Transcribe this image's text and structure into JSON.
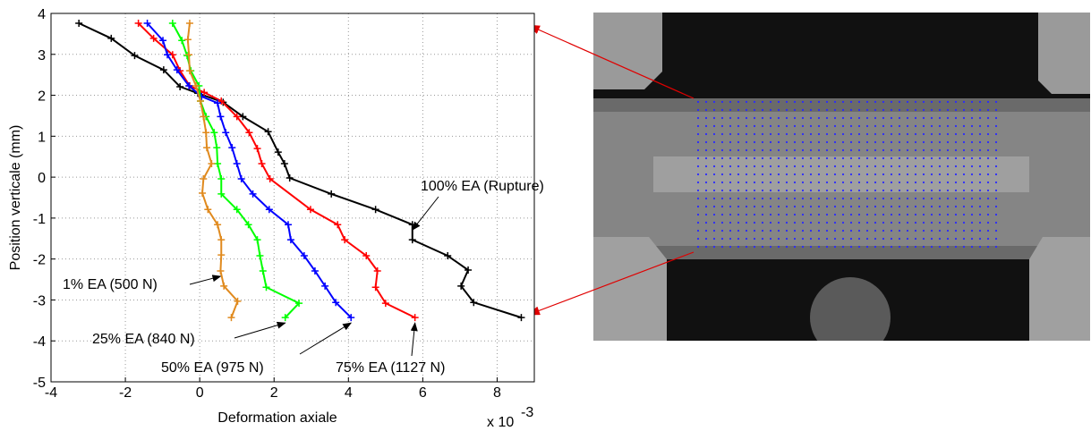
{
  "chart_data": {
    "type": "line",
    "x_label": "Deformation axiale",
    "y_label": "Position verticale (mm)",
    "x_multiplier": "x 10",
    "x_multiplier_exponent": "-3",
    "xlim": [
      -4,
      9
    ],
    "xticks": [
      -4,
      -2,
      0,
      2,
      4,
      6,
      8
    ],
    "ylim": [
      -5,
      4
    ],
    "yticks": [
      -5,
      -4,
      -3,
      -2,
      -1,
      0,
      1,
      2,
      3,
      4
    ],
    "grid": true,
    "series": [
      {
        "name": "100% EA (Rupture)",
        "color": "#000000",
        "x": [
          -3.25,
          -2.38,
          -1.75,
          -0.97,
          -0.53,
          -0.05,
          0.63,
          1.16,
          1.84,
          2.11,
          2.28,
          2.42,
          3.54,
          4.73,
          5.72,
          5.72,
          6.67,
          7.22,
          7.03,
          7.37,
          8.65
        ],
        "values": [
          3.76,
          3.39,
          2.97,
          2.62,
          2.21,
          2.05,
          1.83,
          1.48,
          1.11,
          0.61,
          0.33,
          -0.02,
          -0.41,
          -0.79,
          -1.16,
          -1.53,
          -1.92,
          -2.27,
          -2.66,
          -3.06,
          -3.43
        ]
      },
      {
        "name": "75% EA (1127 N)",
        "color": "#ff0000",
        "x": [
          -1.65,
          -1.24,
          -0.73,
          -0.53,
          -0.27,
          0.12,
          0.58,
          1.0,
          1.33,
          1.55,
          1.67,
          1.89,
          2.98,
          3.71,
          3.9,
          4.48,
          4.78,
          4.73,
          5.0,
          5.79
        ],
        "values": [
          3.76,
          3.39,
          2.99,
          2.6,
          2.23,
          2.07,
          1.86,
          1.48,
          1.09,
          0.7,
          0.33,
          -0.04,
          -0.79,
          -1.16,
          -1.53,
          -1.92,
          -2.29,
          -2.69,
          -3.08,
          -3.43
        ]
      },
      {
        "name": "50% EA (975 N)",
        "color": "#0000ff",
        "x": [
          -1.41,
          -0.99,
          -0.87,
          -0.61,
          -0.29,
          0.05,
          0.48,
          0.56,
          0.7,
          0.87,
          1.0,
          1.12,
          1.43,
          1.87,
          2.38,
          2.45,
          2.81,
          3.1,
          3.37,
          3.66,
          4.07
        ],
        "values": [
          3.76,
          3.34,
          2.99,
          2.62,
          2.23,
          1.97,
          1.81,
          1.48,
          1.09,
          0.72,
          0.33,
          -0.04,
          -0.41,
          -0.79,
          -1.16,
          -1.53,
          -1.92,
          -2.29,
          -2.66,
          -3.06,
          -3.43
        ]
      },
      {
        "name": "25% EA (840 N)",
        "color": "#00ff00",
        "x": [
          -0.73,
          -0.48,
          -0.34,
          -0.24,
          -0.02,
          0.02,
          0.17,
          0.39,
          0.46,
          0.48,
          0.58,
          0.58,
          1.0,
          1.31,
          1.55,
          1.62,
          1.7,
          1.79,
          2.67,
          2.3
        ],
        "values": [
          3.76,
          3.34,
          2.97,
          2.6,
          2.23,
          1.86,
          1.48,
          1.09,
          0.72,
          0.33,
          -0.04,
          -0.41,
          -0.79,
          -1.16,
          -1.53,
          -1.92,
          -2.29,
          -2.69,
          -3.08,
          -3.43
        ]
      },
      {
        "name": "1% EA (500 N)",
        "color": "#e08a1e",
        "x": [
          -0.27,
          -0.32,
          -0.29,
          -0.27,
          -0.1,
          0.02,
          0.1,
          0.17,
          0.19,
          0.32,
          0.1,
          0.07,
          0.22,
          0.48,
          0.58,
          0.58,
          0.56,
          0.65,
          1.02,
          0.85
        ],
        "values": [
          3.76,
          3.36,
          2.99,
          2.6,
          2.23,
          1.86,
          1.48,
          1.09,
          0.72,
          0.33,
          -0.04,
          -0.39,
          -0.79,
          -1.16,
          -1.53,
          -1.9,
          -2.29,
          -2.66,
          -3.03,
          -3.43
        ]
      }
    ]
  }
}
